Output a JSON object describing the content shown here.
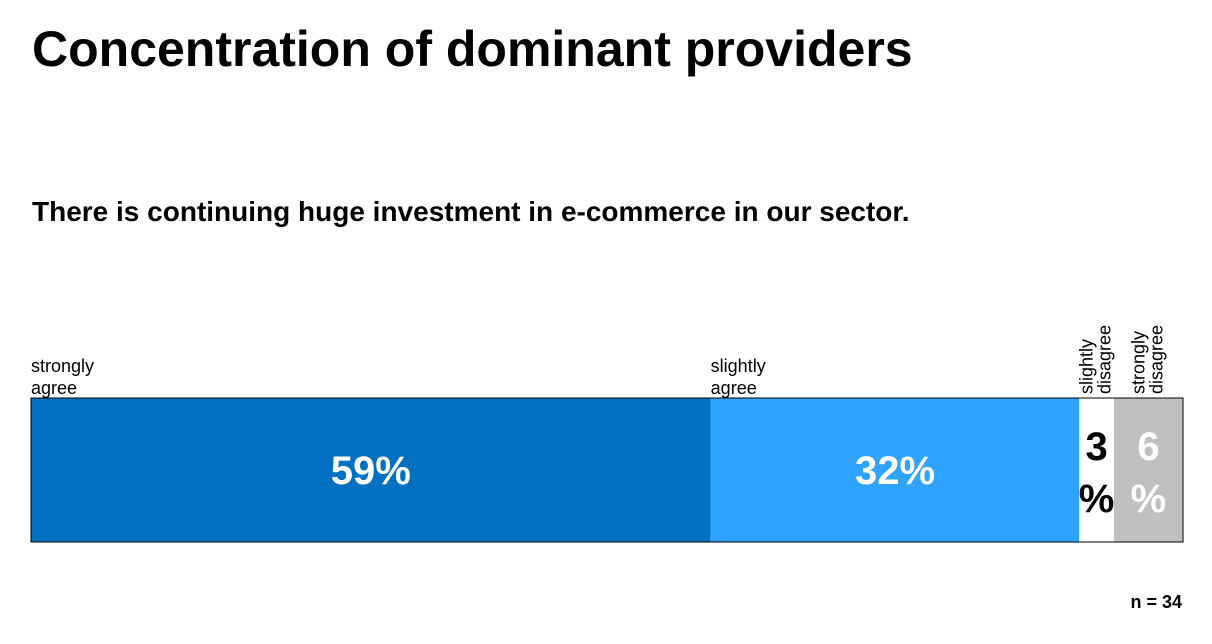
{
  "title": "Concentration of dominant providers",
  "subtitle": "There is continuing huge investment in e-commerce in our sector.",
  "sample_size": "n = 34",
  "chart_data": {
    "type": "bar",
    "orientation": "horizontal-stacked",
    "categories": [
      "strongly agree",
      "slightly agree",
      "slightly disagree",
      "strongly disagree"
    ],
    "values": [
      59,
      32,
      3,
      6
    ],
    "data_labels": [
      "59%",
      "32%",
      "3%",
      "6%"
    ],
    "colors": [
      "#0070C0",
      "#2EA3FF",
      "#FFFFFF",
      "#C0C0C0"
    ],
    "label_colors": [
      "#FFFFFF",
      "#FFFFFF",
      "#000000",
      "#FFFFFF"
    ],
    "title": "There is continuing huge investment in e-commerce in our sector.",
    "xlabel": "",
    "ylabel": "",
    "xlim": [
      0,
      100
    ],
    "grid": false,
    "legend": "none"
  }
}
